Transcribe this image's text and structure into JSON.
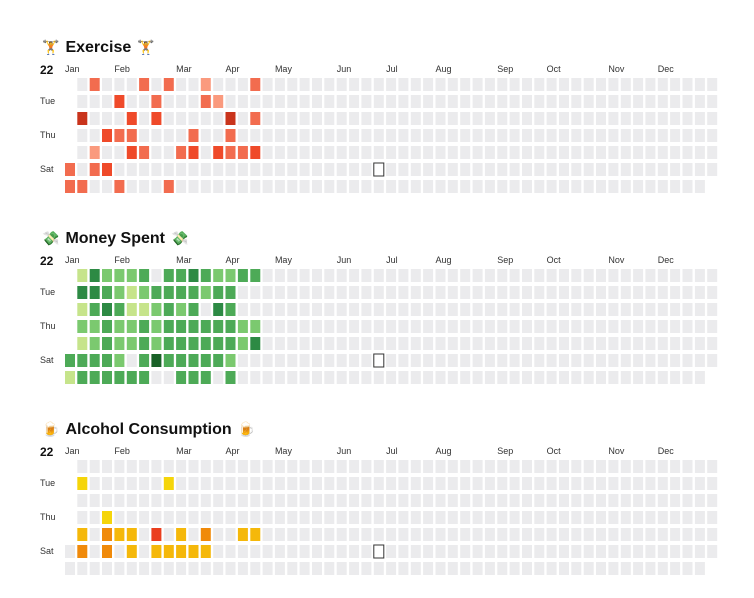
{
  "palette": {
    "empty": "#ebebed",
    "exercise": {
      "1": "#fa9a7e",
      "2": "#f26c4f",
      "3": "#ef4a2a",
      "4": "#c9341c"
    },
    "money": {
      "1": "#c6e48b",
      "2": "#7bc96f",
      "3": "#4daa57",
      "4": "#2d8a44",
      "5": "#196127"
    },
    "alcohol": {
      "1": "#f5d50a",
      "2": "#f5b80a",
      "3": "#f08a0a",
      "4": "#ea3e1e"
    }
  },
  "common": {
    "year": "22",
    "months": [
      "Jan",
      "Feb",
      "Mar",
      "Apr",
      "May",
      "Jun",
      "Jul",
      "Aug",
      "Sep",
      "Oct",
      "Nov",
      "Dec"
    ],
    "day_labels": [
      "Tue",
      "Thu",
      "Sat"
    ]
  },
  "today_marker": {
    "week": 25,
    "day": 5
  },
  "chart_data": [
    {
      "type": "heatmap",
      "title": "Exercise",
      "emoji": "🏋",
      "color_scale": "exercise",
      "weeks": 53,
      "days": 7,
      "start_day": 5,
      "end_day": 5,
      "cells": [
        [
          0,
          5,
          2
        ],
        [
          0,
          6,
          2
        ],
        [
          1,
          2,
          4
        ],
        [
          1,
          6,
          2
        ],
        [
          2,
          0,
          2
        ],
        [
          2,
          4,
          1
        ],
        [
          2,
          5,
          2
        ],
        [
          3,
          3,
          3
        ],
        [
          3,
          5,
          3
        ],
        [
          4,
          1,
          3
        ],
        [
          4,
          3,
          2
        ],
        [
          4,
          6,
          2
        ],
        [
          5,
          2,
          3
        ],
        [
          5,
          3,
          2
        ],
        [
          5,
          4,
          3
        ],
        [
          6,
          0,
          2
        ],
        [
          6,
          4,
          2
        ],
        [
          7,
          1,
          2
        ],
        [
          7,
          2,
          3
        ],
        [
          8,
          0,
          2
        ],
        [
          8,
          6,
          2
        ],
        [
          9,
          4,
          2
        ],
        [
          10,
          3,
          2
        ],
        [
          10,
          4,
          3
        ],
        [
          11,
          1,
          2
        ],
        [
          12,
          4,
          3
        ],
        [
          11,
          0,
          1
        ],
        [
          12,
          1,
          1
        ],
        [
          13,
          2,
          4
        ],
        [
          13,
          3,
          2
        ],
        [
          13,
          4,
          2
        ],
        [
          14,
          4,
          2
        ],
        [
          15,
          0,
          2
        ],
        [
          15,
          2,
          2
        ],
        [
          15,
          4,
          3
        ]
      ]
    },
    {
      "type": "heatmap",
      "title": "Money Spent",
      "emoji": "💸",
      "color_scale": "money",
      "weeks": 53,
      "days": 7,
      "start_day": 5,
      "end_day": 5,
      "cells": [
        [
          0,
          5,
          3
        ],
        [
          0,
          6,
          1
        ],
        [
          1,
          0,
          1
        ],
        [
          1,
          1,
          4
        ],
        [
          1,
          2,
          1
        ],
        [
          1,
          3,
          2
        ],
        [
          1,
          4,
          1
        ],
        [
          1,
          5,
          3
        ],
        [
          1,
          6,
          3
        ],
        [
          2,
          0,
          4
        ],
        [
          2,
          1,
          4
        ],
        [
          2,
          2,
          3
        ],
        [
          2,
          3,
          2
        ],
        [
          2,
          4,
          2
        ],
        [
          2,
          5,
          3
        ],
        [
          2,
          6,
          3
        ],
        [
          3,
          0,
          2
        ],
        [
          3,
          1,
          3
        ],
        [
          3,
          2,
          4
        ],
        [
          3,
          3,
          3
        ],
        [
          3,
          4,
          3
        ],
        [
          3,
          5,
          3
        ],
        [
          3,
          6,
          3
        ],
        [
          4,
          0,
          2
        ],
        [
          4,
          1,
          2
        ],
        [
          4,
          2,
          3
        ],
        [
          4,
          3,
          2
        ],
        [
          4,
          4,
          2
        ],
        [
          4,
          5,
          2
        ],
        [
          4,
          6,
          3
        ],
        [
          5,
          0,
          2
        ],
        [
          5,
          1,
          1
        ],
        [
          5,
          2,
          1
        ],
        [
          5,
          3,
          2
        ],
        [
          5,
          4,
          2
        ],
        [
          5,
          6,
          3
        ],
        [
          6,
          0,
          3
        ],
        [
          6,
          1,
          2
        ],
        [
          6,
          2,
          1
        ],
        [
          6,
          3,
          3
        ],
        [
          6,
          4,
          3
        ],
        [
          6,
          5,
          3
        ],
        [
          6,
          6,
          3
        ],
        [
          7,
          1,
          3
        ],
        [
          7,
          2,
          2
        ],
        [
          7,
          3,
          2
        ],
        [
          7,
          4,
          2
        ],
        [
          7,
          5,
          5
        ],
        [
          8,
          0,
          3
        ],
        [
          8,
          1,
          3
        ],
        [
          8,
          2,
          3
        ],
        [
          8,
          3,
          3
        ],
        [
          8,
          4,
          3
        ],
        [
          8,
          5,
          3
        ],
        [
          9,
          0,
          3
        ],
        [
          9,
          1,
          3
        ],
        [
          9,
          2,
          2
        ],
        [
          9,
          3,
          3
        ],
        [
          9,
          4,
          3
        ],
        [
          9,
          5,
          3
        ],
        [
          9,
          6,
          3
        ],
        [
          10,
          0,
          4
        ],
        [
          10,
          1,
          3
        ],
        [
          10,
          2,
          3
        ],
        [
          10,
          3,
          3
        ],
        [
          10,
          4,
          3
        ],
        [
          10,
          5,
          3
        ],
        [
          10,
          6,
          3
        ],
        [
          11,
          0,
          3
        ],
        [
          11,
          1,
          2
        ],
        [
          11,
          3,
          3
        ],
        [
          11,
          4,
          3
        ],
        [
          11,
          5,
          3
        ],
        [
          11,
          6,
          3
        ],
        [
          12,
          0,
          2
        ],
        [
          12,
          1,
          3
        ],
        [
          12,
          2,
          4
        ],
        [
          12,
          3,
          3
        ],
        [
          12,
          4,
          3
        ],
        [
          12,
          5,
          3
        ],
        [
          13,
          0,
          2
        ],
        [
          13,
          1,
          3
        ],
        [
          13,
          2,
          3
        ],
        [
          13,
          3,
          3
        ],
        [
          13,
          4,
          3
        ],
        [
          13,
          5,
          2
        ],
        [
          13,
          6,
          3
        ],
        [
          14,
          0,
          3
        ],
        [
          14,
          3,
          2
        ],
        [
          14,
          4,
          2
        ],
        [
          15,
          0,
          3
        ],
        [
          15,
          3,
          2
        ],
        [
          15,
          4,
          4
        ]
      ]
    },
    {
      "type": "heatmap",
      "title": "Alcohol Consumption",
      "emoji": "🍺",
      "color_scale": "alcohol",
      "weeks": 53,
      "days": 7,
      "start_day": 5,
      "end_day": 5,
      "cells": [
        [
          1,
          1,
          1
        ],
        [
          1,
          4,
          2
        ],
        [
          1,
          5,
          3
        ],
        [
          3,
          3,
          1
        ],
        [
          3,
          4,
          3
        ],
        [
          3,
          5,
          3
        ],
        [
          4,
          4,
          2
        ],
        [
          5,
          4,
          2
        ],
        [
          5,
          5,
          2
        ],
        [
          7,
          4,
          4
        ],
        [
          7,
          5,
          2
        ],
        [
          8,
          1,
          1
        ],
        [
          8,
          5,
          2
        ],
        [
          9,
          4,
          2
        ],
        [
          9,
          5,
          2
        ],
        [
          10,
          5,
          2
        ],
        [
          11,
          4,
          3
        ],
        [
          11,
          5,
          2
        ],
        [
          14,
          4,
          2
        ],
        [
          15,
          4,
          2
        ]
      ]
    }
  ]
}
